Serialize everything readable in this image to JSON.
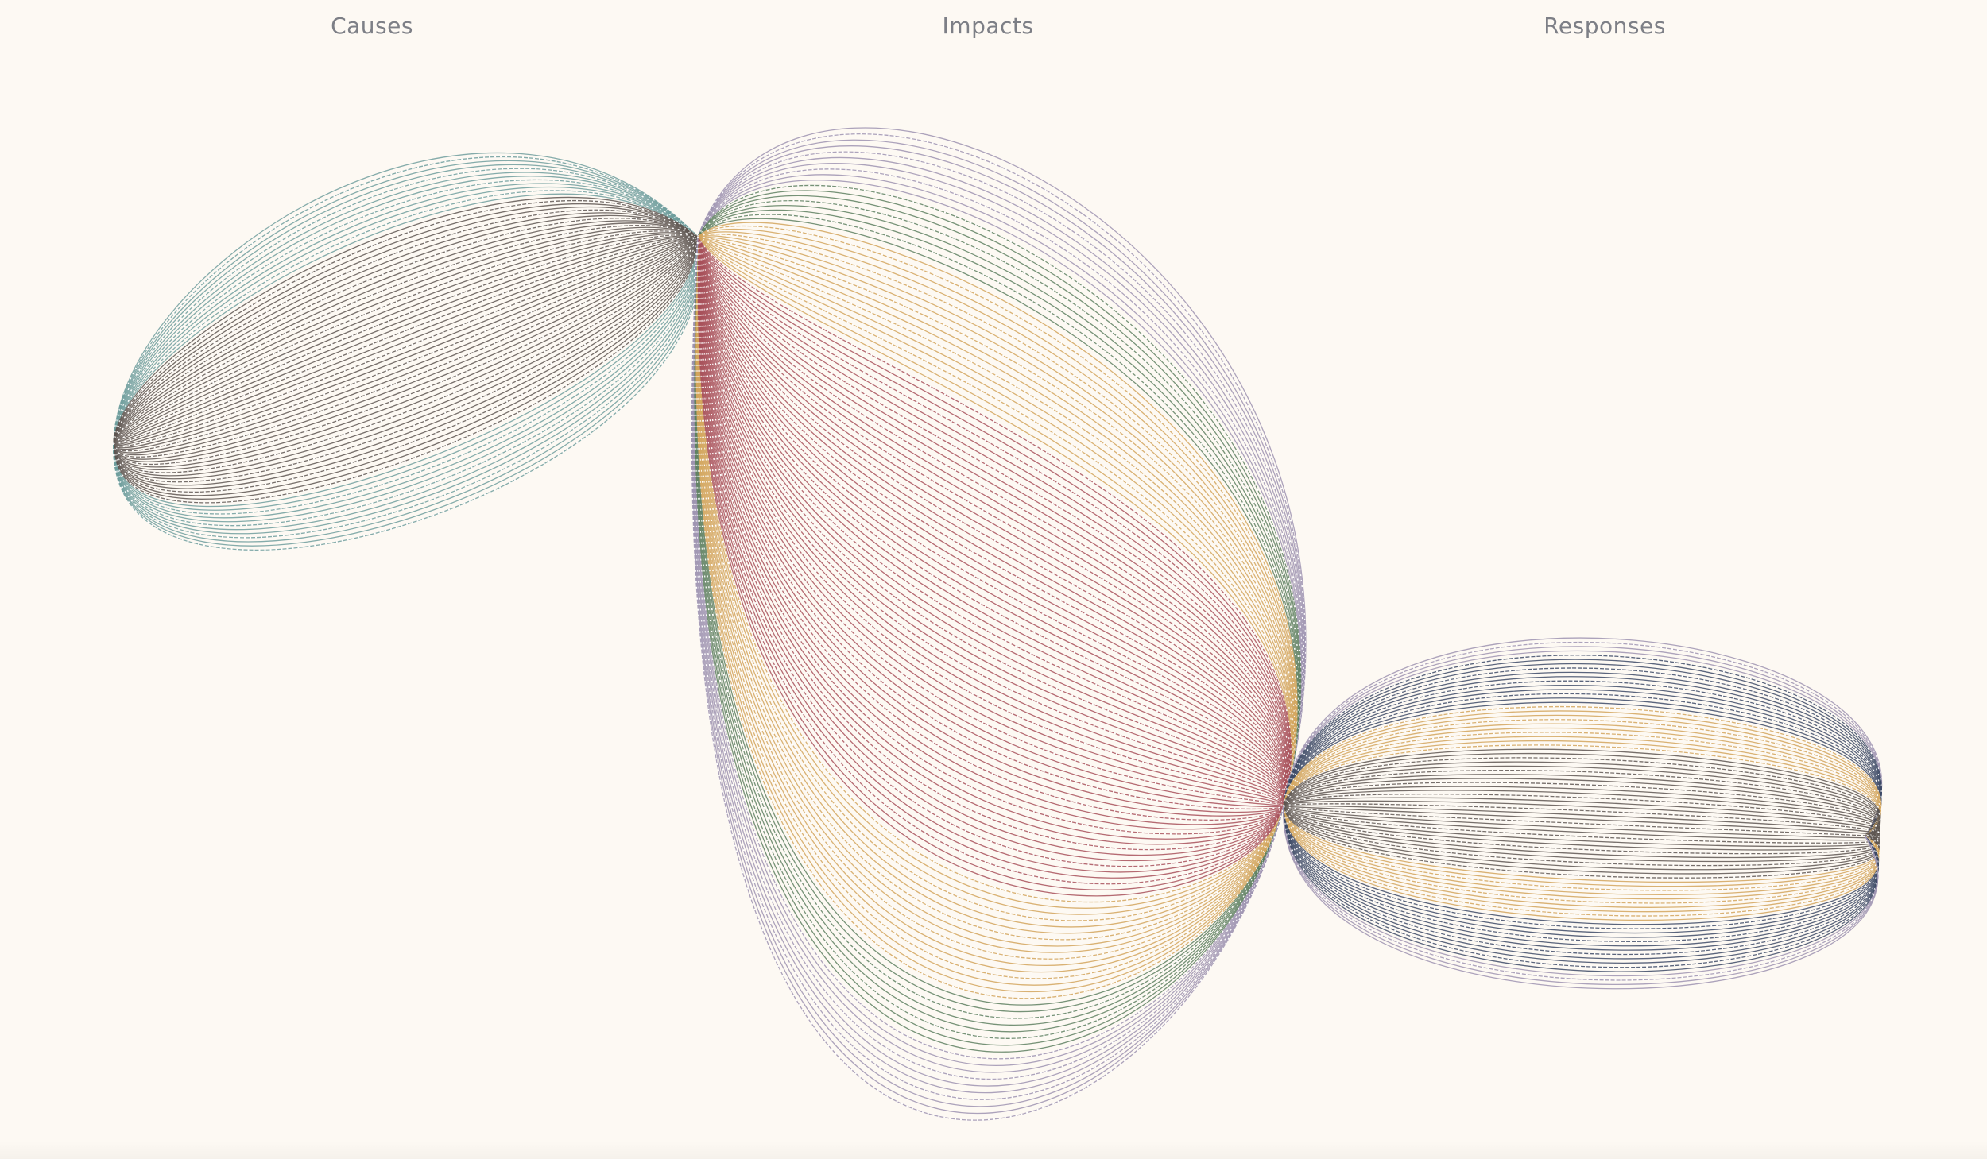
{
  "labels": {
    "causes": "Causes",
    "impacts": "Impacts",
    "responses": "Responses"
  },
  "palette": {
    "background": "#fdf9f3",
    "label": "#7d7f86",
    "teal": "#6e9e9c",
    "gray": "#5e5651",
    "purple": "#9d93b0",
    "green": "#5e8060",
    "gold": "#d2a55c",
    "red": "#a8515a",
    "navy": "#3d4a66",
    "dotted": "#ffffff"
  },
  "groups": [
    {
      "name": "causes",
      "bands": [
        {
          "color": "teal",
          "lines": 12
        },
        {
          "color": "gray",
          "lines": 44
        },
        {
          "color": "teal",
          "lines": 12
        }
      ]
    },
    {
      "name": "impacts",
      "bands": [
        {
          "color": "purple",
          "lines": 10
        },
        {
          "color": "green",
          "lines": 8
        },
        {
          "color": "gold",
          "lines": 16
        },
        {
          "color": "red",
          "lines": 60
        },
        {
          "color": "gold",
          "lines": 16
        },
        {
          "color": "green",
          "lines": 8
        },
        {
          "color": "purple",
          "lines": 10
        }
      ]
    },
    {
      "name": "responses",
      "bands": [
        {
          "color": "purple",
          "lines": 4
        },
        {
          "color": "navy",
          "lines": 12
        },
        {
          "color": "gold",
          "lines": 10
        },
        {
          "color": "gray",
          "lines": 30
        },
        {
          "color": "gold",
          "lines": 10
        },
        {
          "color": "navy",
          "lines": 12
        },
        {
          "color": "purple",
          "lines": 4
        }
      ]
    }
  ]
}
